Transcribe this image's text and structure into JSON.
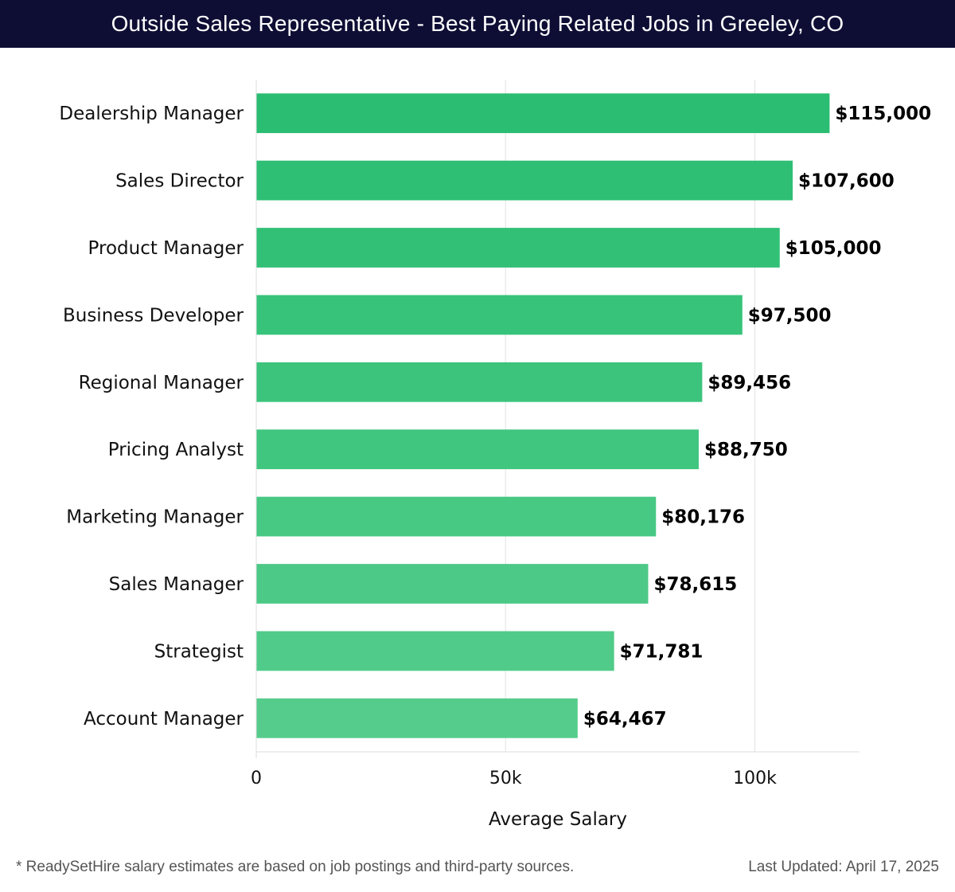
{
  "header": {
    "title": "Outside Sales Representative - Best Paying Related Jobs in Greeley, CO"
  },
  "chart_data": {
    "type": "bar",
    "orientation": "horizontal",
    "categories": [
      "Dealership Manager",
      "Sales Director",
      "Product Manager",
      "Business Developer",
      "Regional Manager",
      "Pricing Analyst",
      "Marketing Manager",
      "Sales Manager",
      "Strategist",
      "Account Manager"
    ],
    "values": [
      115000,
      107600,
      105000,
      97500,
      89456,
      88750,
      80176,
      78615,
      71781,
      64467
    ],
    "value_labels": [
      "$115,000",
      "$107,600",
      "$105,000",
      "$97,500",
      "$89,456",
      "$88,750",
      "$80,176",
      "$78,615",
      "$71,781",
      "$64,467"
    ],
    "xlabel": "Average Salary",
    "ylabel": "",
    "xlim": [
      0,
      121000
    ],
    "xticks": [
      0,
      50000,
      100000
    ],
    "xtick_labels": [
      "0",
      "50k",
      "100k"
    ],
    "grid": true,
    "bar_colors": [
      "#2bbd72",
      "#2ebf74",
      "#32c077",
      "#37c37a",
      "#3cc47c",
      "#40c67f",
      "#47c883",
      "#4cc986",
      "#51cb89",
      "#56cc8c"
    ]
  },
  "footer": {
    "note": "* ReadySetHire salary estimates are based on job postings and third-party sources.",
    "updated": "Last Updated: April 17, 2025"
  }
}
